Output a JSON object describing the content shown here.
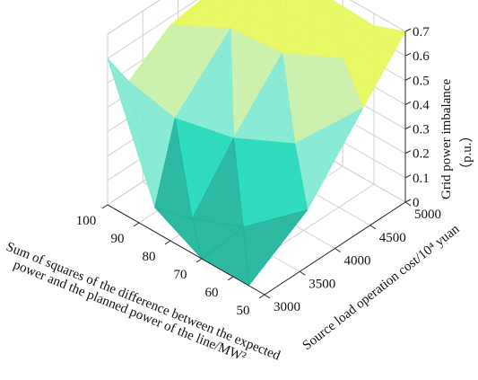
{
  "chart_data": {
    "type": "surface3d",
    "title": "",
    "x_axis": {
      "label_lines": [
        "Sum of squares of the difference between the expected",
        "power and the planned power of the line/MW²"
      ],
      "ticks": [
        "100",
        "90",
        "80",
        "70",
        "60",
        "50"
      ],
      "range": [
        50,
        100
      ]
    },
    "y_axis": {
      "label": "Source load operation cost/10⁴ yuan",
      "ticks": [
        "3000",
        "3500",
        "4000",
        "4500",
        "5000"
      ],
      "range": [
        3000,
        5000
      ]
    },
    "z_axis": {
      "label_lines": [
        "Grid power imbalance",
        "（p.u.）"
      ],
      "ticks": [
        "0",
        "0.1",
        "0.2",
        "0.3",
        "0.4",
        "0.5",
        "0.6",
        "0.7"
      ],
      "range": [
        0,
        0.7
      ]
    },
    "grid": true,
    "surface_points": [
      {
        "x": 100,
        "y": 3000,
        "z": 0.6
      },
      {
        "x": 98,
        "y": 3800,
        "z": 0.6
      },
      {
        "x": 97,
        "y": 4500,
        "z": 0.65
      },
      {
        "x": 96,
        "y": 5000,
        "z": 0.7
      },
      {
        "x": 100,
        "y": 3300,
        "z": 0.45
      },
      {
        "x": 92,
        "y": 3600,
        "z": 0.3
      },
      {
        "x": 90,
        "y": 4300,
        "z": 0.55
      },
      {
        "x": 87,
        "y": 5000,
        "z": 0.68
      },
      {
        "x": 85,
        "y": 3000,
        "z": 0.1
      },
      {
        "x": 82,
        "y": 3400,
        "z": 0.0
      },
      {
        "x": 80,
        "y": 3900,
        "z": 0.25
      },
      {
        "x": 78,
        "y": 4500,
        "z": 0.5
      },
      {
        "x": 75,
        "y": 5000,
        "z": 0.66
      },
      {
        "x": 70,
        "y": 3000,
        "z": 0.0
      },
      {
        "x": 68,
        "y": 3500,
        "z": 0.05
      },
      {
        "x": 65,
        "y": 4100,
        "z": 0.3
      },
      {
        "x": 63,
        "y": 4700,
        "z": 0.55
      },
      {
        "x": 60,
        "y": 5000,
        "z": 0.65
      },
      {
        "x": 55,
        "y": 3000,
        "z": 0.0
      },
      {
        "x": 52,
        "y": 3700,
        "z": 0.2
      },
      {
        "x": 50,
        "y": 4400,
        "z": 0.5
      },
      {
        "x": 50,
        "y": 5000,
        "z": 0.7
      }
    ],
    "colormap": [
      "#1bb39a",
      "#1fd9b8",
      "#7fe8d2",
      "#c8f0a8",
      "#e6f75a"
    ]
  }
}
